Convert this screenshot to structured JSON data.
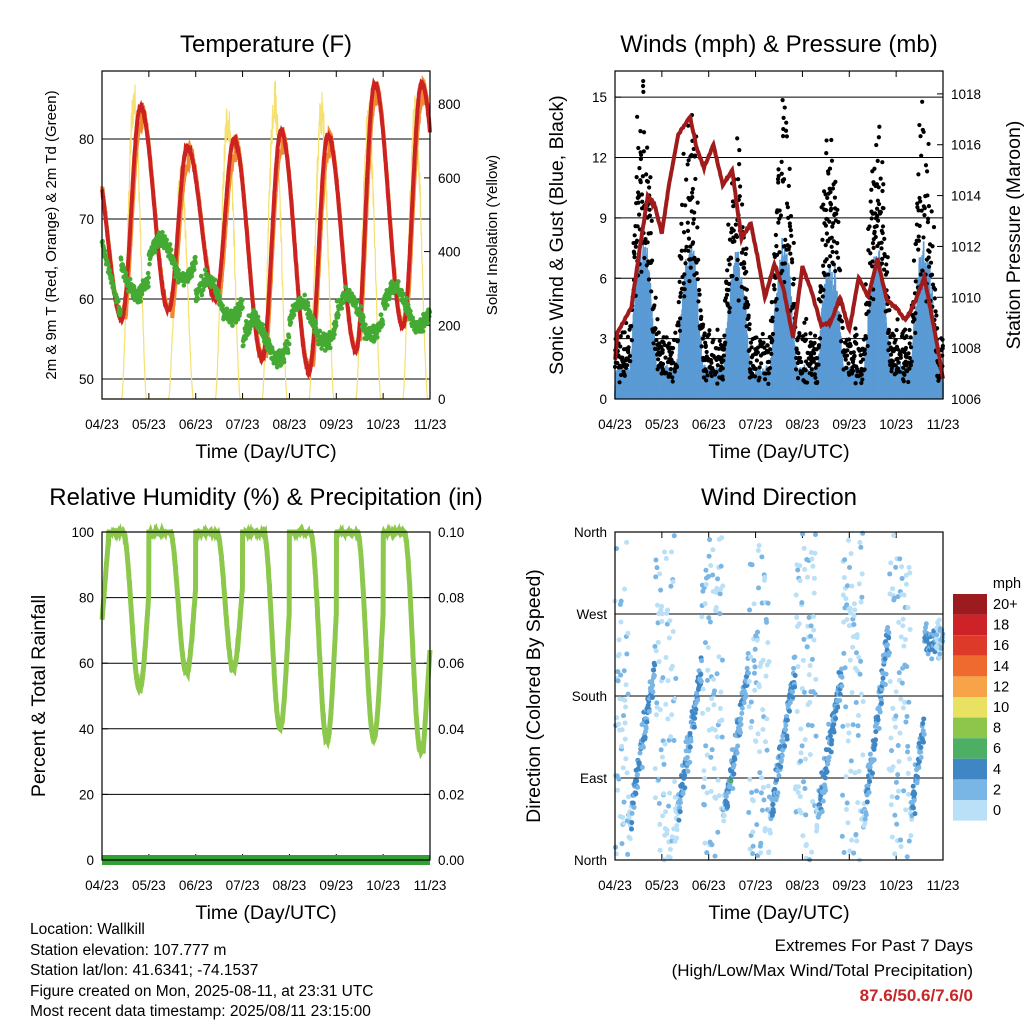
{
  "footer": {
    "location": "Location: Wallkill",
    "elevation": "Station elevation: 107.777 m",
    "latlon": "Station lat/lon: 41.6341; -74.1537",
    "created": "Figure created on Mon, 2025-08-11, at 23:31 UTC",
    "recent": "Most recent data timestamp: 2025/08/11 23:15:00",
    "extremes_title": "Extremes For Past 7 Days",
    "extremes_sub": "(High/Low/Max Wind/Total Precipitation)",
    "extremes_values": "87.6/50.6/7.6/0"
  },
  "colors": {
    "t2m": "#cc2222",
    "t9m": "#f08a30",
    "td": "#44aa33",
    "solar": "#f5e070",
    "wind": "#5b9bd5",
    "gust": "#000000",
    "pressure": "#a01c1c",
    "rh": "#8cc84b",
    "precip": "#33a033"
  },
  "chart_data": [
    {
      "type": "line",
      "title": "Temperature (F)",
      "xlabel": "Time (Day/UTC)",
      "ylabel": "2m & 9m T (Red, Orange) & 2m Td (Green)",
      "y2label": "Solar Insolation (Yellow)",
      "x_ticks": [
        "04/23",
        "05/23",
        "06/23",
        "07/23",
        "08/23",
        "09/23",
        "10/23",
        "11/23"
      ],
      "ylim": [
        47.5,
        88.5
      ],
      "y_ticks": [
        "50",
        "60",
        "70",
        "80"
      ],
      "y2lim": [
        0,
        890
      ],
      "y2_ticks": [
        "0",
        "200",
        "400",
        "600",
        "800"
      ],
      "grid": true,
      "day_extremes": {
        "t2m_min": [
          57.5,
          58.5,
          60.0,
          52.5,
          51.0,
          53.5,
          56.5,
          57.0
        ],
        "t2m_max": [
          84.0,
          79.0,
          80.0,
          81.0,
          80.5,
          87.0,
          87.0
        ],
        "td_typical": [
          63,
          65,
          60,
          55,
          57,
          58,
          59
        ]
      },
      "series": [
        {
          "name": "2m T"
        },
        {
          "name": "9m T"
        },
        {
          "name": "2m Td"
        },
        {
          "name": "Solar Insolation"
        }
      ]
    },
    {
      "type": "line",
      "title": "Winds (mph) & Pressure (mb)",
      "xlabel": "Time (Day/UTC)",
      "ylabel": "Sonic Wind & Gust (Blue, Black)",
      "y2label": "Station Pressure (Maroon)",
      "x_ticks": [
        "04/23",
        "05/23",
        "06/23",
        "07/23",
        "08/23",
        "09/23",
        "10/23",
        "11/23"
      ],
      "ylim": [
        0,
        16.3
      ],
      "y_ticks": [
        "0",
        "3",
        "6",
        "9",
        "12",
        "15"
      ],
      "y2lim": [
        1006,
        1018.9
      ],
      "y2_ticks": [
        "1006",
        "1008",
        "1010",
        "1012",
        "1014",
        "1016",
        "1018"
      ],
      "grid": true,
      "pressure_keypoints": {
        "t": [
          0,
          0.05,
          0.35,
          0.55,
          0.7,
          0.85,
          1.0,
          1.15,
          1.35,
          1.6,
          1.75,
          1.9,
          2.1,
          2.3,
          2.5,
          2.7,
          2.9,
          3.05,
          3.2,
          3.4,
          3.6,
          3.8,
          4.0,
          4.2,
          4.4,
          4.6,
          4.8,
          5.0,
          5.2,
          5.4,
          5.6,
          5.8,
          6.0,
          6.2,
          6.4,
          6.6,
          6.8,
          7.0
        ],
        "mb": [
          1007.5,
          1008.6,
          1009.6,
          1012.2,
          1014.0,
          1013.6,
          1012.5,
          1014.4,
          1016.4,
          1017.1,
          1015.8,
          1015.1,
          1016.0,
          1014.4,
          1015.0,
          1012.3,
          1012.9,
          1011.5,
          1010.0,
          1011.3,
          1010.3,
          1008.4,
          1011.2,
          1010.2,
          1008.9,
          1009.0,
          1010.0,
          1008.7,
          1010.8,
          1010.0,
          1011.5,
          1009.9,
          1009.6,
          1009.1,
          1009.8,
          1010.8,
          1008.9,
          1006.8
        ]
      },
      "series": [
        {
          "name": "Sonic Wind"
        },
        {
          "name": "Gust"
        },
        {
          "name": "Station Pressure"
        }
      ]
    },
    {
      "type": "line",
      "title": "Relative Humidity (%) & Precipitation (in)",
      "xlabel": "Time (Day/UTC)",
      "ylabel": "Percent & Total Rainfall",
      "x_ticks": [
        "04/23",
        "05/23",
        "06/23",
        "07/23",
        "08/23",
        "09/23",
        "10/23",
        "11/23"
      ],
      "ylim": [
        0,
        100
      ],
      "y_ticks": [
        "0",
        "20",
        "40",
        "60",
        "80",
        "100"
      ],
      "y2lim": [
        0,
        0.1
      ],
      "y2_ticks": [
        "0.00",
        "0.02",
        "0.04",
        "0.06",
        "0.08",
        "0.10"
      ],
      "grid": true,
      "rh_daily_min": [
        52,
        57,
        58,
        40,
        36,
        37,
        33
      ],
      "precip_total": 0,
      "series": [
        {
          "name": "Relative Humidity"
        },
        {
          "name": "Total Rainfall"
        }
      ]
    },
    {
      "type": "scatter",
      "title": "Wind Direction",
      "xlabel": "Time (Day/UTC)",
      "ylabel": "Direction (Colored By Speed)",
      "x_ticks": [
        "04/23",
        "05/23",
        "06/23",
        "07/23",
        "08/23",
        "09/23",
        "10/23",
        "11/23"
      ],
      "y_ticks": [
        "North",
        "East",
        "South",
        "West",
        "North"
      ],
      "ylim": [
        0,
        360
      ],
      "grid": true,
      "legend": {
        "title": "mph",
        "labels": [
          "20+",
          "18",
          "16",
          "14",
          "12",
          "10",
          "8",
          "6",
          "4",
          "2",
          "0"
        ],
        "colors": [
          "#9b1b1e",
          "#cc2228",
          "#dd3a2a",
          "#ef6a2e",
          "#f6a447",
          "#e9e161",
          "#8ec54b",
          "#4caf63",
          "#3f86c5",
          "#79b6e5",
          "#b9e0f6"
        ]
      }
    }
  ]
}
